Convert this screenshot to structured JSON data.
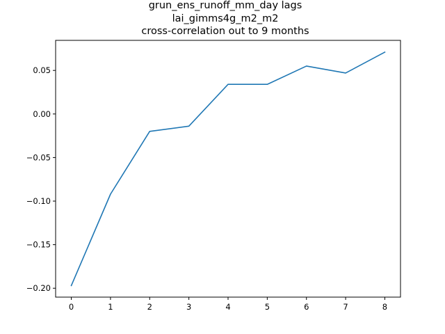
{
  "chart_data": {
    "type": "line",
    "title_lines": [
      "grun_ens_runoff_mm_day lags",
      "lai_gimms4g_m2_m2",
      "cross-correlation out to 9 months"
    ],
    "xlabel": "",
    "ylabel": "",
    "x": [
      0,
      1,
      2,
      3,
      4,
      5,
      6,
      7,
      8
    ],
    "series": [
      {
        "values": [
          -0.197,
          -0.092,
          -0.02,
          -0.014,
          0.034,
          0.034,
          0.055,
          0.047,
          0.071
        ],
        "color": "#1f77b4"
      }
    ],
    "xlim": [
      -0.4,
      8.4
    ],
    "ylim": [
      -0.2102,
      0.0845
    ],
    "xticks": [
      0,
      1,
      2,
      3,
      4,
      5,
      6,
      7,
      8
    ],
    "xtick_labels": [
      "0",
      "1",
      "2",
      "3",
      "4",
      "5",
      "6",
      "7",
      "8"
    ],
    "yticks": [
      -0.2,
      -0.15,
      -0.1,
      -0.05,
      0.0,
      0.05
    ],
    "ytick_labels": [
      "−0.20",
      "−0.15",
      "−0.10",
      "−0.05",
      "0.00",
      "0.05"
    ],
    "grid": false,
    "legend": "none"
  }
}
